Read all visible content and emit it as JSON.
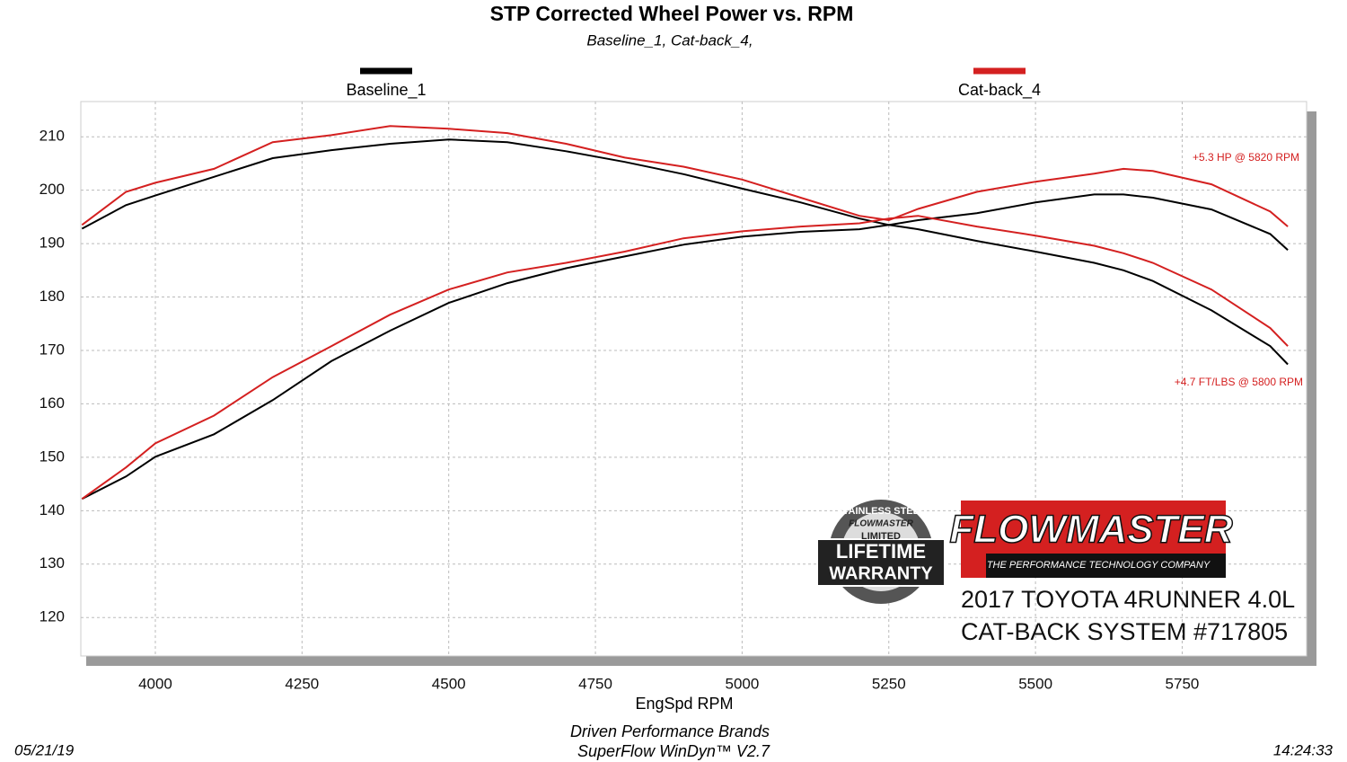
{
  "chart_data": {
    "type": "line",
    "title": "STP Corrected Wheel Power vs. RPM",
    "subtitle": "Baseline_1, Cat-back_4,",
    "x_label": "EngSpd  RPM",
    "x": [
      3875,
      3950,
      4000,
      4100,
      4200,
      4300,
      4400,
      4500,
      4600,
      4700,
      4800,
      4900,
      5000,
      5100,
      5200,
      5250,
      5300,
      5400,
      5500,
      5600,
      5650,
      5700,
      5800,
      5900,
      5930
    ],
    "series": [
      {
        "name": "Baseline_1",
        "color": "#000000",
        "power": [
          192.8,
          197.2,
          199,
          202.5,
          206,
          207.5,
          208.7,
          209.5,
          209,
          207.3,
          205.3,
          203,
          200.3,
          197.7,
          194.7,
          193.5,
          194.4,
          195.7,
          197.7,
          199.2,
          199.2,
          198.6,
          196.4,
          191.8,
          188.8
        ],
        "torque": [
          142.2,
          146.4,
          150.1,
          154.3,
          160.7,
          168,
          173.7,
          178.9,
          182.6,
          185.4,
          187.6,
          189.8,
          191.3,
          192.2,
          192.7,
          193.5,
          192.7,
          190.5,
          188.5,
          186.4,
          185,
          183,
          177.5,
          170.8,
          167.4
        ]
      },
      {
        "name": "Cat-back_4",
        "color": "#d42020",
        "power": [
          193.5,
          199.7,
          201.4,
          204,
          209,
          210.3,
          212,
          211.5,
          210.7,
          208.7,
          206.1,
          204.4,
          202,
          198.6,
          195.2,
          194.4,
          196.5,
          199.7,
          201.6,
          203.1,
          204,
          203.6,
          201.1,
          196,
          193.2
        ],
        "torque": [
          142.2,
          148.1,
          152.6,
          157.8,
          165,
          170.8,
          176.7,
          181.4,
          184.6,
          186.4,
          188.5,
          191,
          192.3,
          193.2,
          193.8,
          194.7,
          195.2,
          193.2,
          191.5,
          189.6,
          188.2,
          186.4,
          181.4,
          174.2,
          170.8
        ]
      }
    ],
    "xlim": [
      3873,
      5962
    ],
    "xticks": [
      4000,
      4250,
      4500,
      4750,
      5000,
      5250,
      5500,
      5750
    ],
    "ylim": [
      112.8,
      216.6
    ],
    "yticks": [
      120,
      130,
      140,
      150,
      160,
      170,
      180,
      190,
      200,
      210
    ],
    "grid": true,
    "annotations": [
      "+5.3 HP @ 5820 RPM",
      "+4.7 FT/LBS @ 5800 RPM"
    ],
    "annotation_color": "#d42020",
    "badge": [
      "STAINLESS STEEL",
      "FLOWMASTER",
      "LIMITED",
      "LIFETIME",
      "WARRANTY"
    ],
    "logo": {
      "brand": "FLOWMASTER",
      "tagline": "THE PERFORMANCE TECHNOLOGY COMPANY",
      "line1": "2017 TOYOTA 4RUNNER 4.0L",
      "line2": "CAT-BACK SYSTEM #717805"
    },
    "footer": {
      "company": "Driven Performance Brands",
      "software": "SuperFlow WinDyn™  V2.7",
      "date": "05/21/19",
      "time": "14:24:33"
    }
  }
}
